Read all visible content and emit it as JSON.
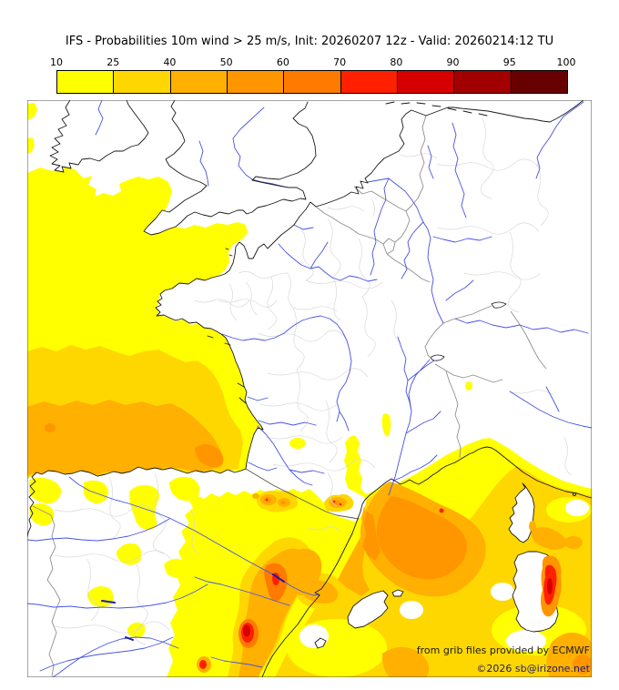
{
  "title": "IFS - Probabilities 10m wind > 25 m/s, Init: 20260207 12z - Valid: 20260214:12 TU",
  "colorbar": {
    "tick_labels": [
      "10",
      "25",
      "40",
      "50",
      "60",
      "70",
      "80",
      "90",
      "95",
      "100"
    ],
    "segment_colors": [
      "#ffff00",
      "#ffd700",
      "#ffb000",
      "#ff9600",
      "#ff7b00",
      "#ff2000",
      "#d60000",
      "#a20000",
      "#670000"
    ]
  },
  "attribution": {
    "line1": "from grib files provided by ECMWF",
    "line2": "©2026 sb@irizone.net"
  },
  "colors": {
    "sea_land": "#ffffff",
    "coastline": "#1a1a1a",
    "country_border": "#8f8f8f",
    "region_border": "#d9d9d9",
    "river": "#4653e3",
    "reservoir": "#1a1aa8",
    "frame": "#4d4d4d",
    "attribution_text": "#1a1a1a",
    "attribution_link": "#1c1c6e",
    "prob_10": "#ffff00",
    "prob_25": "#ffd700",
    "prob_40": "#ffb000",
    "prob_50": "#ff9600",
    "prob_60": "#ff7b00",
    "prob_70": "#ff2000",
    "prob_80": "#d60000",
    "prob_90": "#a20000",
    "prob_95": "#670000"
  }
}
